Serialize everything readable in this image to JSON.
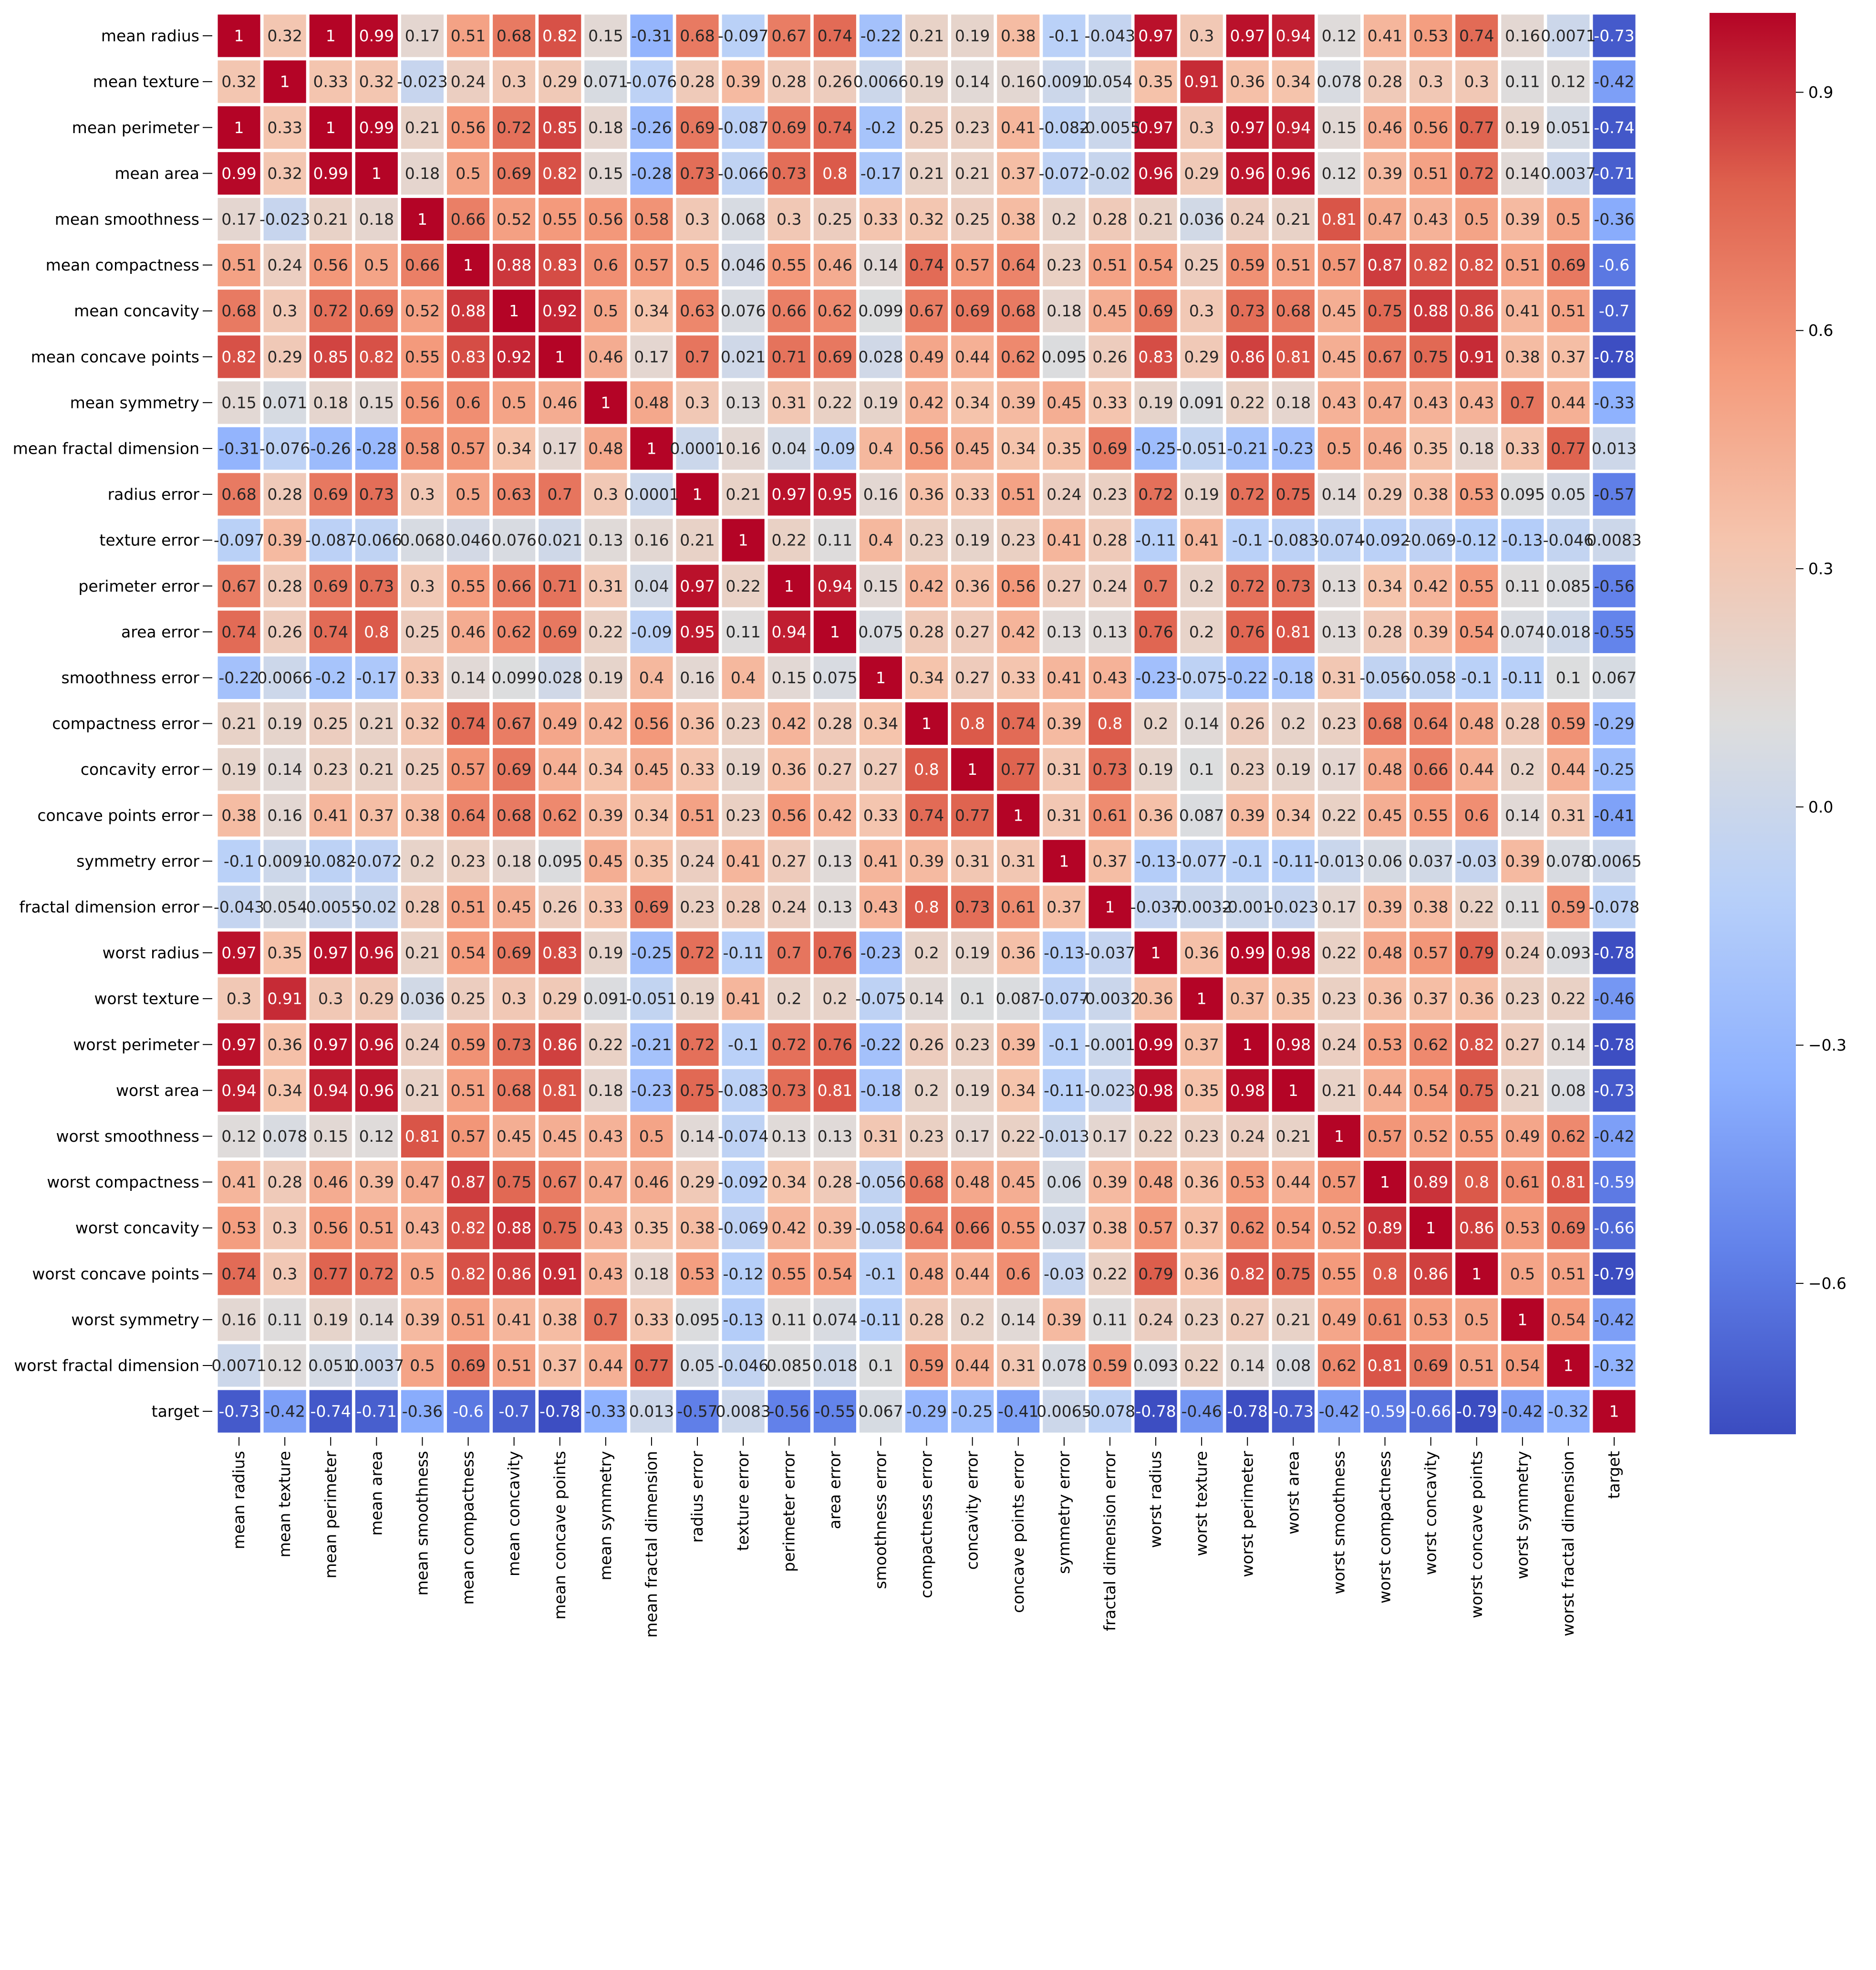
{
  "chart_data": {
    "type": "heatmap",
    "title": "",
    "xlabel": "",
    "ylabel": "",
    "colormap": "coolwarm",
    "vmin": -0.79,
    "vmax": 1,
    "grid": false,
    "annot": true,
    "legend": "colorbar-right",
    "categories": [
      "mean radius",
      "mean texture",
      "mean perimeter",
      "mean area",
      "mean smoothness",
      "mean compactness",
      "mean concavity",
      "mean concave points",
      "mean symmetry",
      "mean fractal dimension",
      "radius error",
      "texture error",
      "perimeter error",
      "area error",
      "smoothness error",
      "compactness error",
      "concavity error",
      "concave points error",
      "symmetry error",
      "fractal dimension error",
      "worst radius",
      "worst texture",
      "worst perimeter",
      "worst area",
      "worst smoothness",
      "worst compactness",
      "worst concavity",
      "worst concave points",
      "worst symmetry",
      "worst fractal dimension",
      "target"
    ],
    "colorbar_ticks": [
      0.9,
      0.6,
      0.3,
      0.0,
      -0.3,
      -0.6
    ],
    "colorbar_tick_labels": [
      "0.9",
      "0.6",
      "0.3",
      "0.0",
      "−0.3",
      "−0.6"
    ],
    "annotations": [
      [
        "1",
        "0.32",
        "1",
        "0.99",
        "0.17",
        "0.51",
        "0.68",
        "0.82",
        "0.15",
        "-0.31",
        "0.68",
        "-0.097",
        "0.67",
        "0.74",
        "-0.22",
        "0.21",
        "0.19",
        "0.38",
        "-0.1",
        "-0.043",
        "0.97",
        "0.3",
        "0.97",
        "0.94",
        "0.12",
        "0.41",
        "0.53",
        "0.74",
        "0.16",
        "0.0071",
        "-0.73"
      ],
      [
        "0.32",
        "1",
        "0.33",
        "0.32",
        "-0.023",
        "0.24",
        "0.3",
        "0.29",
        "0.071",
        "-0.076",
        "0.28",
        "0.39",
        "0.28",
        "0.26",
        "0.0066",
        "0.19",
        "0.14",
        "0.16",
        "0.0091",
        "0.054",
        "0.35",
        "0.91",
        "0.36",
        "0.34",
        "0.078",
        "0.28",
        "0.3",
        "0.3",
        "0.11",
        "0.12",
        "-0.42"
      ],
      [
        "1",
        "0.33",
        "1",
        "0.99",
        "0.21",
        "0.56",
        "0.72",
        "0.85",
        "0.18",
        "-0.26",
        "0.69",
        "-0.087",
        "0.69",
        "0.74",
        "-0.2",
        "0.25",
        "0.23",
        "0.41",
        "-0.082",
        "-0.0055",
        "0.97",
        "0.3",
        "0.97",
        "0.94",
        "0.15",
        "0.46",
        "0.56",
        "0.77",
        "0.19",
        "0.051",
        "-0.74"
      ],
      [
        "0.99",
        "0.32",
        "0.99",
        "1",
        "0.18",
        "0.5",
        "0.69",
        "0.82",
        "0.15",
        "-0.28",
        "0.73",
        "-0.066",
        "0.73",
        "0.8",
        "-0.17",
        "0.21",
        "0.21",
        "0.37",
        "-0.072",
        "-0.02",
        "0.96",
        "0.29",
        "0.96",
        "0.96",
        "0.12",
        "0.39",
        "0.51",
        "0.72",
        "0.14",
        "0.0037",
        "-0.71"
      ],
      [
        "0.17",
        "-0.023",
        "0.21",
        "0.18",
        "1",
        "0.66",
        "0.52",
        "0.55",
        "0.56",
        "0.58",
        "0.3",
        "0.068",
        "0.3",
        "0.25",
        "0.33",
        "0.32",
        "0.25",
        "0.38",
        "0.2",
        "0.28",
        "0.21",
        "0.036",
        "0.24",
        "0.21",
        "0.81",
        "0.47",
        "0.43",
        "0.5",
        "0.39",
        "0.5",
        "-0.36"
      ],
      [
        "0.51",
        "0.24",
        "0.56",
        "0.5",
        "0.66",
        "1",
        "0.88",
        "0.83",
        "0.6",
        "0.57",
        "0.5",
        "0.046",
        "0.55",
        "0.46",
        "0.14",
        "0.74",
        "0.57",
        "0.64",
        "0.23",
        "0.51",
        "0.54",
        "0.25",
        "0.59",
        "0.51",
        "0.57",
        "0.87",
        "0.82",
        "0.82",
        "0.51",
        "0.69",
        "-0.6"
      ],
      [
        "0.68",
        "0.3",
        "0.72",
        "0.69",
        "0.52",
        "0.88",
        "1",
        "0.92",
        "0.5",
        "0.34",
        "0.63",
        "0.076",
        "0.66",
        "0.62",
        "0.099",
        "0.67",
        "0.69",
        "0.68",
        "0.18",
        "0.45",
        "0.69",
        "0.3",
        "0.73",
        "0.68",
        "0.45",
        "0.75",
        "0.88",
        "0.86",
        "0.41",
        "0.51",
        "-0.7"
      ],
      [
        "0.82",
        "0.29",
        "0.85",
        "0.82",
        "0.55",
        "0.83",
        "0.92",
        "1",
        "0.46",
        "0.17",
        "0.7",
        "0.021",
        "0.71",
        "0.69",
        "0.028",
        "0.49",
        "0.44",
        "0.62",
        "0.095",
        "0.26",
        "0.83",
        "0.29",
        "0.86",
        "0.81",
        "0.45",
        "0.67",
        "0.75",
        "0.91",
        "0.38",
        "0.37",
        "-0.78"
      ],
      [
        "0.15",
        "0.071",
        "0.18",
        "0.15",
        "0.56",
        "0.6",
        "0.5",
        "0.46",
        "1",
        "0.48",
        "0.3",
        "0.13",
        "0.31",
        "0.22",
        "0.19",
        "0.42",
        "0.34",
        "0.39",
        "0.45",
        "0.33",
        "0.19",
        "0.091",
        "0.22",
        "0.18",
        "0.43",
        "0.47",
        "0.43",
        "0.43",
        "0.7",
        "0.44",
        "-0.33"
      ],
      [
        "-0.31",
        "-0.076",
        "-0.26",
        "-0.28",
        "0.58",
        "0.57",
        "0.34",
        "0.17",
        "0.48",
        "1",
        "0.0001",
        "0.16",
        "0.04",
        "-0.09",
        "0.4",
        "0.56",
        "0.45",
        "0.34",
        "0.35",
        "0.69",
        "-0.25",
        "-0.051",
        "-0.21",
        "-0.23",
        "0.5",
        "0.46",
        "0.35",
        "0.18",
        "0.33",
        "0.77",
        "0.013"
      ],
      [
        "0.68",
        "0.28",
        "0.69",
        "0.73",
        "0.3",
        "0.5",
        "0.63",
        "0.7",
        "0.3",
        "0.0001",
        "1",
        "0.21",
        "0.97",
        "0.95",
        "0.16",
        "0.36",
        "0.33",
        "0.51",
        "0.24",
        "0.23",
        "0.72",
        "0.19",
        "0.72",
        "0.75",
        "0.14",
        "0.29",
        "0.38",
        "0.53",
        "0.095",
        "0.05",
        "-0.57"
      ],
      [
        "-0.097",
        "0.39",
        "-0.087",
        "-0.066",
        "0.068",
        "0.046",
        "0.076",
        "0.021",
        "0.13",
        "0.16",
        "0.21",
        "1",
        "0.22",
        "0.11",
        "0.4",
        "0.23",
        "0.19",
        "0.23",
        "0.41",
        "0.28",
        "-0.11",
        "0.41",
        "-0.1",
        "-0.083",
        "-0.074",
        "-0.092",
        "-0.069",
        "-0.12",
        "-0.13",
        "-0.046",
        "0.0083"
      ],
      [
        "0.67",
        "0.28",
        "0.69",
        "0.73",
        "0.3",
        "0.55",
        "0.66",
        "0.71",
        "0.31",
        "0.04",
        "0.97",
        "0.22",
        "1",
        "0.94",
        "0.15",
        "0.42",
        "0.36",
        "0.56",
        "0.27",
        "0.24",
        "0.7",
        "0.2",
        "0.72",
        "0.73",
        "0.13",
        "0.34",
        "0.42",
        "0.55",
        "0.11",
        "0.085",
        "-0.56"
      ],
      [
        "0.74",
        "0.26",
        "0.74",
        "0.8",
        "0.25",
        "0.46",
        "0.62",
        "0.69",
        "0.22",
        "-0.09",
        "0.95",
        "0.11",
        "0.94",
        "1",
        "0.075",
        "0.28",
        "0.27",
        "0.42",
        "0.13",
        "0.13",
        "0.76",
        "0.2",
        "0.76",
        "0.81",
        "0.13",
        "0.28",
        "0.39",
        "0.54",
        "0.074",
        "0.018",
        "-0.55"
      ],
      [
        "-0.22",
        "0.0066",
        "-0.2",
        "-0.17",
        "0.33",
        "0.14",
        "0.099",
        "0.028",
        "0.19",
        "0.4",
        "0.16",
        "0.4",
        "0.15",
        "0.075",
        "1",
        "0.34",
        "0.27",
        "0.33",
        "0.41",
        "0.43",
        "-0.23",
        "-0.075",
        "-0.22",
        "-0.18",
        "0.31",
        "-0.056",
        "-0.058",
        "-0.1",
        "-0.11",
        "0.1",
        "0.067"
      ],
      [
        "0.21",
        "0.19",
        "0.25",
        "0.21",
        "0.32",
        "0.74",
        "0.67",
        "0.49",
        "0.42",
        "0.56",
        "0.36",
        "0.23",
        "0.42",
        "0.28",
        "0.34",
        "1",
        "0.8",
        "0.74",
        "0.39",
        "0.8",
        "0.2",
        "0.14",
        "0.26",
        "0.2",
        "0.23",
        "0.68",
        "0.64",
        "0.48",
        "0.28",
        "0.59",
        "-0.29"
      ],
      [
        "0.19",
        "0.14",
        "0.23",
        "0.21",
        "0.25",
        "0.57",
        "0.69",
        "0.44",
        "0.34",
        "0.45",
        "0.33",
        "0.19",
        "0.36",
        "0.27",
        "0.27",
        "0.8",
        "1",
        "0.77",
        "0.31",
        "0.73",
        "0.19",
        "0.1",
        "0.23",
        "0.19",
        "0.17",
        "0.48",
        "0.66",
        "0.44",
        "0.2",
        "0.44",
        "-0.25"
      ],
      [
        "0.38",
        "0.16",
        "0.41",
        "0.37",
        "0.38",
        "0.64",
        "0.68",
        "0.62",
        "0.39",
        "0.34",
        "0.51",
        "0.23",
        "0.56",
        "0.42",
        "0.33",
        "0.74",
        "0.77",
        "1",
        "0.31",
        "0.61",
        "0.36",
        "0.087",
        "0.39",
        "0.34",
        "0.22",
        "0.45",
        "0.55",
        "0.6",
        "0.14",
        "0.31",
        "-0.41"
      ],
      [
        "-0.1",
        "0.0091",
        "-0.082",
        "-0.072",
        "0.2",
        "0.23",
        "0.18",
        "0.095",
        "0.45",
        "0.35",
        "0.24",
        "0.41",
        "0.27",
        "0.13",
        "0.41",
        "0.39",
        "0.31",
        "0.31",
        "1",
        "0.37",
        "-0.13",
        "-0.077",
        "-0.1",
        "-0.11",
        "-0.013",
        "0.06",
        "0.037",
        "-0.03",
        "0.39",
        "0.078",
        "0.0065"
      ],
      [
        "-0.043",
        "0.054",
        "-0.0055",
        "-0.02",
        "0.28",
        "0.51",
        "0.45",
        "0.26",
        "0.33",
        "0.69",
        "0.23",
        "0.28",
        "0.24",
        "0.13",
        "0.43",
        "0.8",
        "0.73",
        "0.61",
        "0.37",
        "1",
        "-0.037",
        "-0.0032",
        "-0.001",
        "-0.023",
        "0.17",
        "0.39",
        "0.38",
        "0.22",
        "0.11",
        "0.59",
        "-0.078"
      ],
      [
        "0.97",
        "0.35",
        "0.97",
        "0.96",
        "0.21",
        "0.54",
        "0.69",
        "0.83",
        "0.19",
        "-0.25",
        "0.72",
        "-0.11",
        "0.7",
        "0.76",
        "-0.23",
        "0.2",
        "0.19",
        "0.36",
        "-0.13",
        "-0.037",
        "1",
        "0.36",
        "0.99",
        "0.98",
        "0.22",
        "0.48",
        "0.57",
        "0.79",
        "0.24",
        "0.093",
        "-0.78"
      ],
      [
        "0.3",
        "0.91",
        "0.3",
        "0.29",
        "0.036",
        "0.25",
        "0.3",
        "0.29",
        "0.091",
        "-0.051",
        "0.19",
        "0.41",
        "0.2",
        "0.2",
        "-0.075",
        "0.14",
        "0.1",
        "0.087",
        "-0.077",
        "-0.0032",
        "0.36",
        "1",
        "0.37",
        "0.35",
        "0.23",
        "0.36",
        "0.37",
        "0.36",
        "0.23",
        "0.22",
        "-0.46"
      ],
      [
        "0.97",
        "0.36",
        "0.97",
        "0.96",
        "0.24",
        "0.59",
        "0.73",
        "0.86",
        "0.22",
        "-0.21",
        "0.72",
        "-0.1",
        "0.72",
        "0.76",
        "-0.22",
        "0.26",
        "0.23",
        "0.39",
        "-0.1",
        "-0.001",
        "0.99",
        "0.37",
        "1",
        "0.98",
        "0.24",
        "0.53",
        "0.62",
        "0.82",
        "0.27",
        "0.14",
        "-0.78"
      ],
      [
        "0.94",
        "0.34",
        "0.94",
        "0.96",
        "0.21",
        "0.51",
        "0.68",
        "0.81",
        "0.18",
        "-0.23",
        "0.75",
        "-0.083",
        "0.73",
        "0.81",
        "-0.18",
        "0.2",
        "0.19",
        "0.34",
        "-0.11",
        "-0.023",
        "0.98",
        "0.35",
        "0.98",
        "1",
        "0.21",
        "0.44",
        "0.54",
        "0.75",
        "0.21",
        "0.08",
        "-0.73"
      ],
      [
        "0.12",
        "0.078",
        "0.15",
        "0.12",
        "0.81",
        "0.57",
        "0.45",
        "0.45",
        "0.43",
        "0.5",
        "0.14",
        "-0.074",
        "0.13",
        "0.13",
        "0.31",
        "0.23",
        "0.17",
        "0.22",
        "-0.013",
        "0.17",
        "0.22",
        "0.23",
        "0.24",
        "0.21",
        "1",
        "0.57",
        "0.52",
        "0.55",
        "0.49",
        "0.62",
        "-0.42"
      ],
      [
        "0.41",
        "0.28",
        "0.46",
        "0.39",
        "0.47",
        "0.87",
        "0.75",
        "0.67",
        "0.47",
        "0.46",
        "0.29",
        "-0.092",
        "0.34",
        "0.28",
        "-0.056",
        "0.68",
        "0.48",
        "0.45",
        "0.06",
        "0.39",
        "0.48",
        "0.36",
        "0.53",
        "0.44",
        "0.57",
        "1",
        "0.89",
        "0.8",
        "0.61",
        "0.81",
        "-0.59"
      ],
      [
        "0.53",
        "0.3",
        "0.56",
        "0.51",
        "0.43",
        "0.82",
        "0.88",
        "0.75",
        "0.43",
        "0.35",
        "0.38",
        "-0.069",
        "0.42",
        "0.39",
        "-0.058",
        "0.64",
        "0.66",
        "0.55",
        "0.037",
        "0.38",
        "0.57",
        "0.37",
        "0.62",
        "0.54",
        "0.52",
        "0.89",
        "1",
        "0.86",
        "0.53",
        "0.69",
        "-0.66"
      ],
      [
        "0.74",
        "0.3",
        "0.77",
        "0.72",
        "0.5",
        "0.82",
        "0.86",
        "0.91",
        "0.43",
        "0.18",
        "0.53",
        "-0.12",
        "0.55",
        "0.54",
        "-0.1",
        "0.48",
        "0.44",
        "0.6",
        "-0.03",
        "0.22",
        "0.79",
        "0.36",
        "0.82",
        "0.75",
        "0.55",
        "0.8",
        "0.86",
        "1",
        "0.5",
        "0.51",
        "-0.79"
      ],
      [
        "0.16",
        "0.11",
        "0.19",
        "0.14",
        "0.39",
        "0.51",
        "0.41",
        "0.38",
        "0.7",
        "0.33",
        "0.095",
        "-0.13",
        "0.11",
        "0.074",
        "-0.11",
        "0.28",
        "0.2",
        "0.14",
        "0.39",
        "0.11",
        "0.24",
        "0.23",
        "0.27",
        "0.21",
        "0.49",
        "0.61",
        "0.53",
        "0.5",
        "1",
        "0.54",
        "-0.42"
      ],
      [
        "0.0071",
        "0.12",
        "0.051",
        "0.0037",
        "0.5",
        "0.69",
        "0.51",
        "0.37",
        "0.44",
        "0.77",
        "0.05",
        "-0.046",
        "0.085",
        "0.018",
        "0.1",
        "0.59",
        "0.44",
        "0.31",
        "0.078",
        "0.59",
        "0.093",
        "0.22",
        "0.14",
        "0.08",
        "0.62",
        "0.81",
        "0.69",
        "0.51",
        "0.54",
        "1",
        "-0.32"
      ],
      [
        "-0.73",
        "-0.42",
        "-0.74",
        "-0.71",
        "-0.36",
        "-0.6",
        "-0.7",
        "-0.78",
        "-0.33",
        "0.013",
        "-0.57",
        "0.0083",
        "-0.56",
        "-0.55",
        "0.067",
        "-0.29",
        "-0.25",
        "-0.41",
        "0.0065",
        "-0.078",
        "-0.78",
        "-0.46",
        "-0.78",
        "-0.73",
        "-0.42",
        "-0.59",
        "-0.66",
        "-0.79",
        "-0.42",
        "-0.32",
        "1"
      ]
    ]
  }
}
